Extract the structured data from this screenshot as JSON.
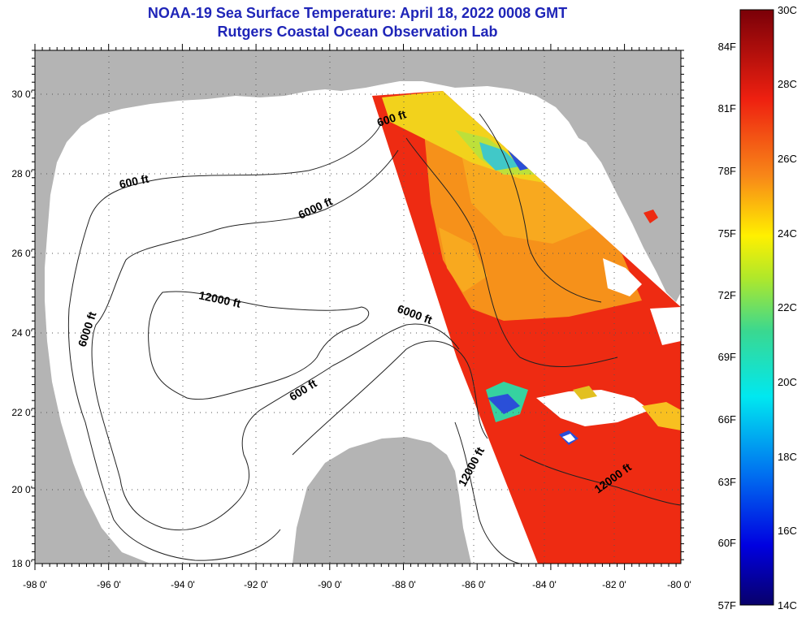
{
  "header": {
    "title": "NOAA-19 Sea Surface Temperature:  April 18, 2022 0008 GMT",
    "subtitle": "Rutgers Coastal Ocean Observation Lab"
  },
  "map": {
    "lat_labels": [
      "30 0'",
      "28 0'",
      "26 0'",
      "24 0'",
      "22 0'",
      "20 0'",
      "18 0'"
    ],
    "lon_labels": [
      "-98 0'",
      "-96 0'",
      "-94 0'",
      "-92 0'",
      "-90 0'",
      "-88 0'",
      "-86 0'",
      "-84 0'",
      "-82 0'",
      "-80 0'"
    ],
    "contour_labels": [
      "600 ft",
      "6000 ft",
      "600 ft",
      "12000 ft",
      "6000 ft",
      "6000 ft",
      "600 ft",
      "12000 ft",
      "12000 ft"
    ]
  },
  "colorbar": {
    "f_labels": [
      "84F",
      "81F",
      "78F",
      "75F",
      "72F",
      "69F",
      "66F",
      "63F",
      "60F",
      "57F"
    ],
    "c_labels": [
      "30C",
      "28C",
      "26C",
      "24C",
      "22C",
      "20C",
      "18C",
      "16C",
      "14C"
    ]
  },
  "colors": {
    "land": "#b4b4b4",
    "title": "#1f25b8",
    "sst_warm": "#ee2b12",
    "sst_mid": "#f6911a",
    "sst_cool": "#f2d21c",
    "cloud": "#ffffff"
  }
}
